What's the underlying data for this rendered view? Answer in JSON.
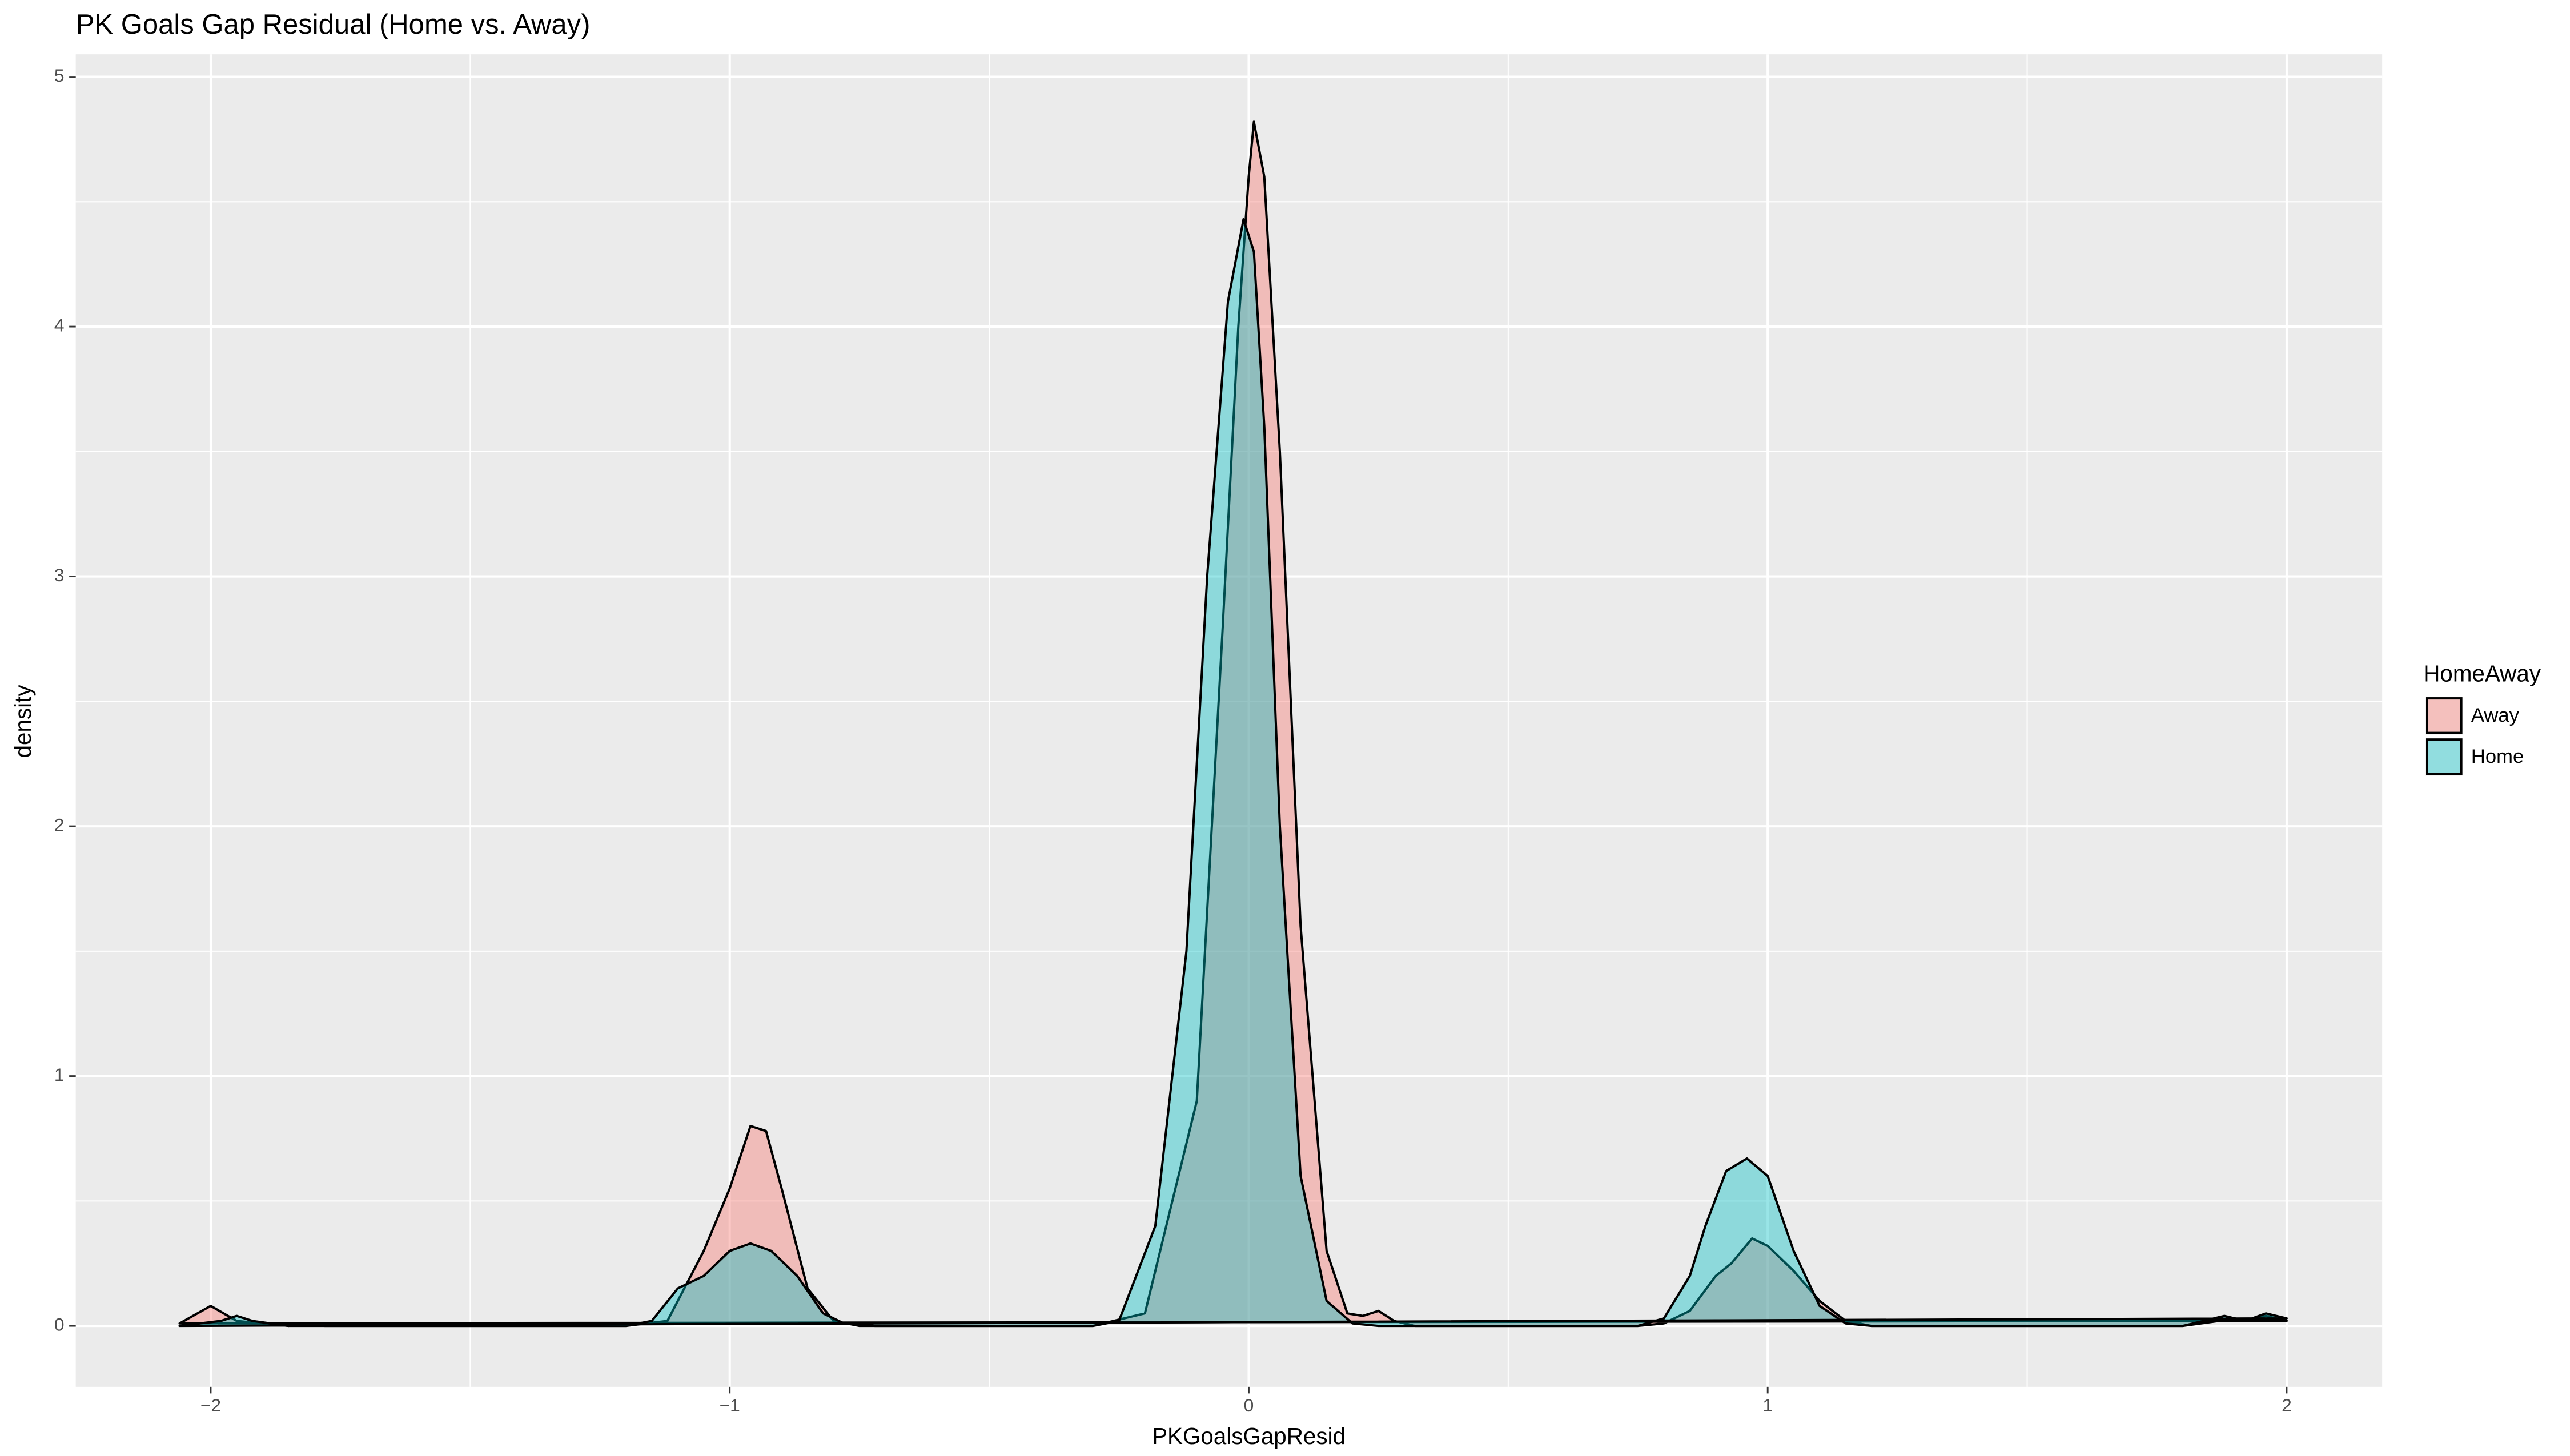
{
  "chart_data": {
    "type": "density",
    "title": "PK Goals Gap Residual (Home vs. Away)",
    "x_label": "PKGoalsGapResid",
    "y_label": "density",
    "legend_title": "HomeAway",
    "legend_position": "right",
    "grid": true,
    "xlim": [
      -2.26,
      2.184
    ],
    "ylim": [
      -0.244,
      5.09
    ],
    "xticks": [
      {
        "value": -2,
        "label": "−2"
      },
      {
        "value": -1,
        "label": "−1"
      },
      0,
      1,
      2
    ],
    "yticks": [
      0,
      1,
      2,
      3,
      4,
      5
    ],
    "series": [
      {
        "name": "Away",
        "color": "#F8766D",
        "x": [
          -2.06,
          -2.0,
          -1.95,
          -1.9,
          -1.85,
          -1.82,
          -1.78,
          -1.2,
          -1.12,
          -1.05,
          -1.0,
          -0.96,
          -0.93,
          -0.9,
          -0.85,
          -0.8,
          -0.75,
          -0.3,
          -0.2,
          -0.1,
          -0.05,
          -0.02,
          0.0,
          0.01,
          0.03,
          0.06,
          0.1,
          0.15,
          0.19,
          0.22,
          0.25,
          0.28,
          0.32,
          0.75,
          0.8,
          0.85,
          0.9,
          0.93,
          0.97,
          1.0,
          1.05,
          1.1,
          1.15,
          1.2,
          1.8,
          1.87,
          1.9,
          1.93,
          1.96,
          2.0
        ],
        "values": [
          0.01,
          0.08,
          0.02,
          0.01,
          0,
          0.01,
          0,
          0,
          0.02,
          0.3,
          0.55,
          0.8,
          0.78,
          0.55,
          0.15,
          0.02,
          0,
          0,
          0.05,
          0.9,
          2.8,
          4.0,
          4.6,
          4.82,
          4.6,
          3.5,
          1.6,
          0.3,
          0.05,
          0.04,
          0.06,
          0.02,
          0,
          0,
          0.01,
          0.06,
          0.2,
          0.25,
          0.35,
          0.32,
          0.22,
          0.1,
          0.02,
          0,
          0,
          0.02,
          0.03,
          0.02,
          0.04,
          0.02
        ]
      },
      {
        "name": "Home",
        "color": "#00BFC4",
        "x": [
          -2.06,
          -1.98,
          -1.95,
          -1.92,
          -1.85,
          -1.2,
          -1.15,
          -1.1,
          -1.05,
          -1.0,
          -0.96,
          -0.92,
          -0.87,
          -0.82,
          -0.78,
          -0.72,
          -0.3,
          -0.25,
          -0.18,
          -0.12,
          -0.08,
          -0.04,
          -0.01,
          0.01,
          0.03,
          0.06,
          0.1,
          0.15,
          0.2,
          0.25,
          0.75,
          0.8,
          0.85,
          0.88,
          0.92,
          0.96,
          1.0,
          1.05,
          1.1,
          1.15,
          1.2,
          1.8,
          1.88,
          1.92,
          1.96,
          2.0
        ],
        "values": [
          0,
          0.02,
          0.04,
          0.02,
          0,
          0,
          0.02,
          0.15,
          0.2,
          0.3,
          0.33,
          0.3,
          0.2,
          0.05,
          0.01,
          0,
          0,
          0.02,
          0.4,
          1.5,
          3.0,
          4.1,
          4.43,
          4.3,
          3.6,
          2.0,
          0.6,
          0.1,
          0.01,
          0,
          0,
          0.03,
          0.2,
          0.4,
          0.62,
          0.67,
          0.6,
          0.3,
          0.08,
          0.01,
          0,
          0,
          0.04,
          0.02,
          0.05,
          0.03
        ]
      }
    ]
  }
}
